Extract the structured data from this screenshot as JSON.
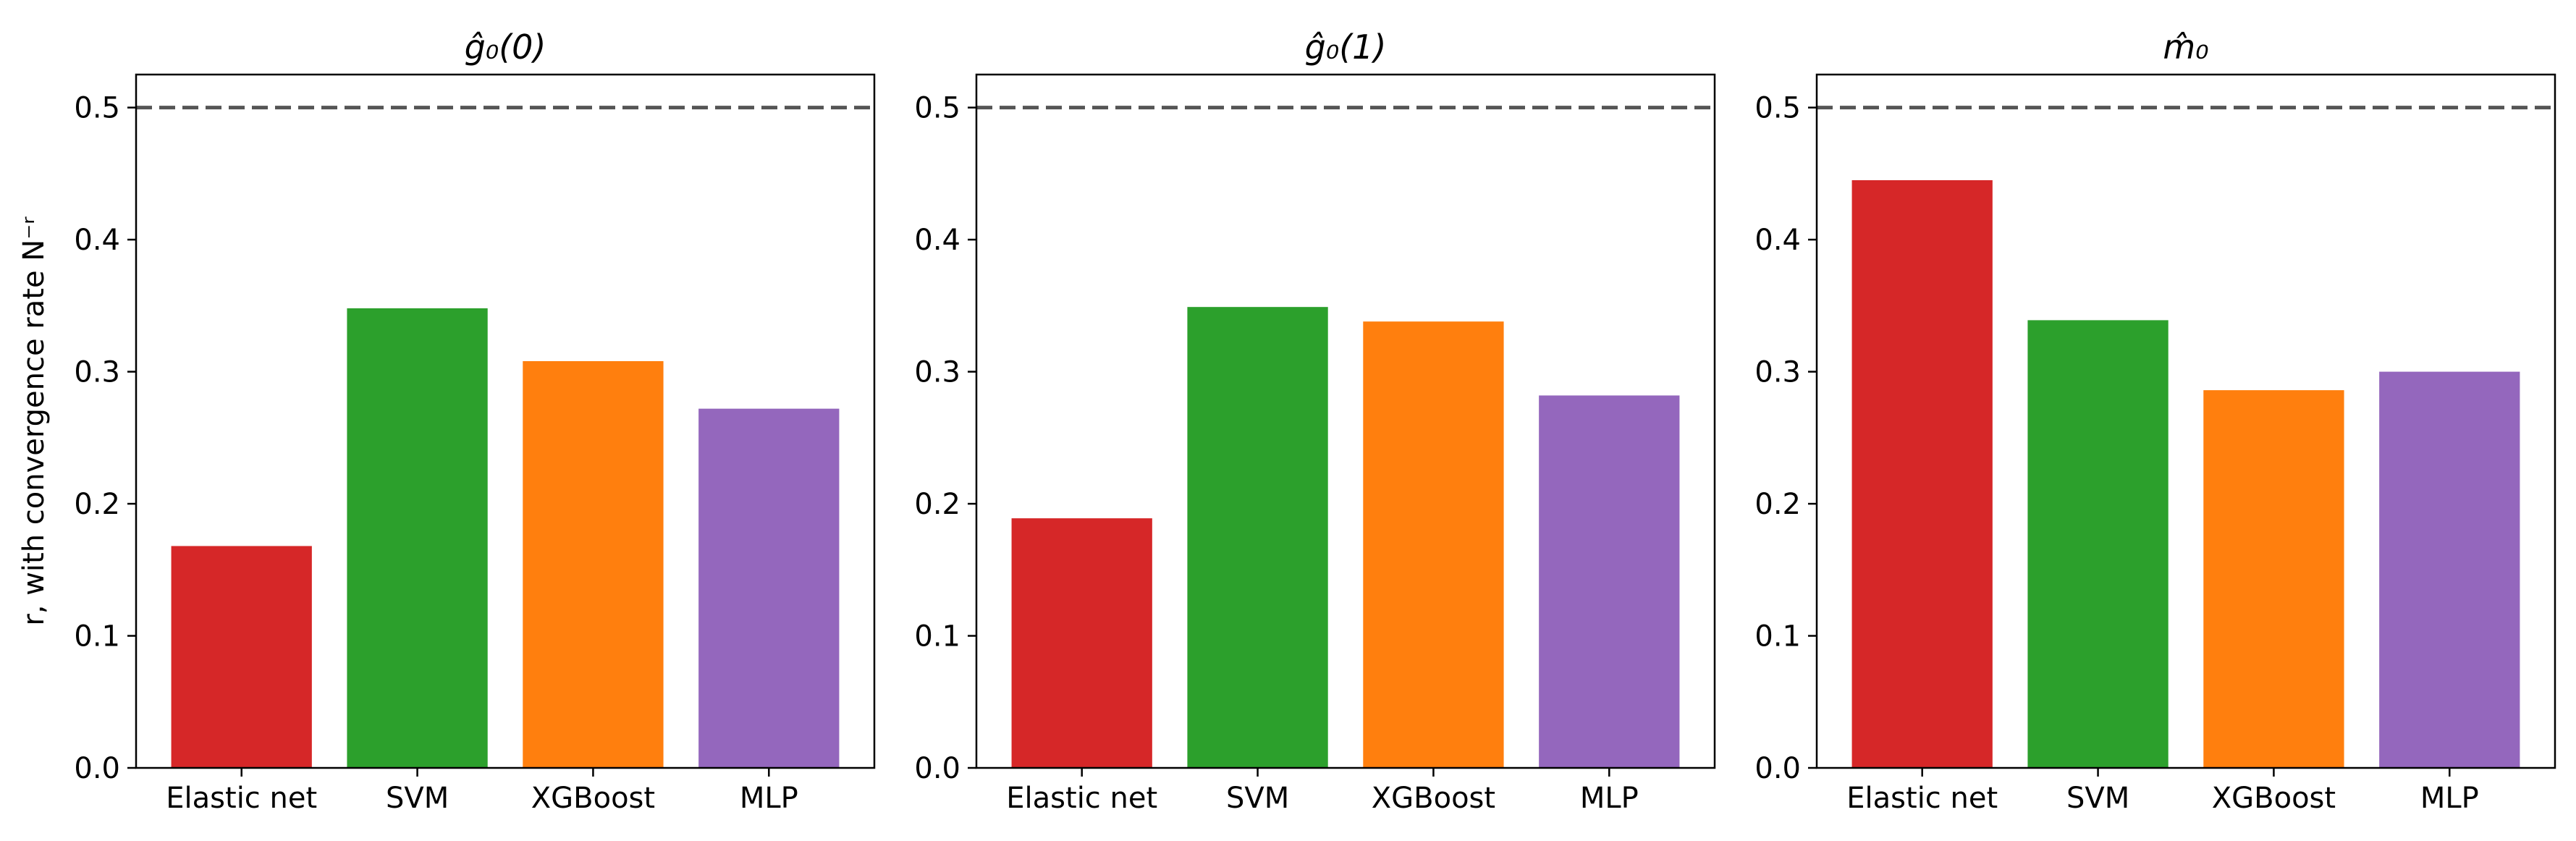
{
  "chart_data": [
    {
      "type": "bar",
      "title": "ĝ₀(0)",
      "categories": [
        "Elastic net",
        "SVM",
        "XGBoost",
        "MLP"
      ],
      "values": [
        0.168,
        0.348,
        0.308,
        0.272
      ],
      "colors": [
        "#d62728",
        "#2ca02c",
        "#ff7f0e",
        "#9467bd"
      ],
      "ylabel": "r, with convergence rate N⁻ʳ",
      "ylim": [
        0,
        0.525
      ],
      "yticks": [
        "0.0",
        "0.1",
        "0.2",
        "0.3",
        "0.4",
        "0.5"
      ],
      "reference_line": {
        "y": 0.5,
        "style": "dashed",
        "color": "#555555"
      },
      "grid": false
    },
    {
      "type": "bar",
      "title": "ĝ₀(1)",
      "categories": [
        "Elastic net",
        "SVM",
        "XGBoost",
        "MLP"
      ],
      "values": [
        0.189,
        0.349,
        0.338,
        0.282
      ],
      "colors": [
        "#d62728",
        "#2ca02c",
        "#ff7f0e",
        "#9467bd"
      ],
      "ylabel": "",
      "ylim": [
        0,
        0.525
      ],
      "yticks": [
        "0.0",
        "0.1",
        "0.2",
        "0.3",
        "0.4",
        "0.5"
      ],
      "reference_line": {
        "y": 0.5,
        "style": "dashed",
        "color": "#555555"
      },
      "grid": false
    },
    {
      "type": "bar",
      "title": "m̂₀",
      "categories": [
        "Elastic net",
        "SVM",
        "XGBoost",
        "MLP"
      ],
      "values": [
        0.445,
        0.339,
        0.286,
        0.3
      ],
      "colors": [
        "#d62728",
        "#2ca02c",
        "#ff7f0e",
        "#9467bd"
      ],
      "ylabel": "",
      "ylim": [
        0,
        0.525
      ],
      "yticks": [
        "0.0",
        "0.1",
        "0.2",
        "0.3",
        "0.4",
        "0.5"
      ],
      "reference_line": {
        "y": 0.5,
        "style": "dashed",
        "color": "#555555"
      },
      "grid": false
    }
  ]
}
